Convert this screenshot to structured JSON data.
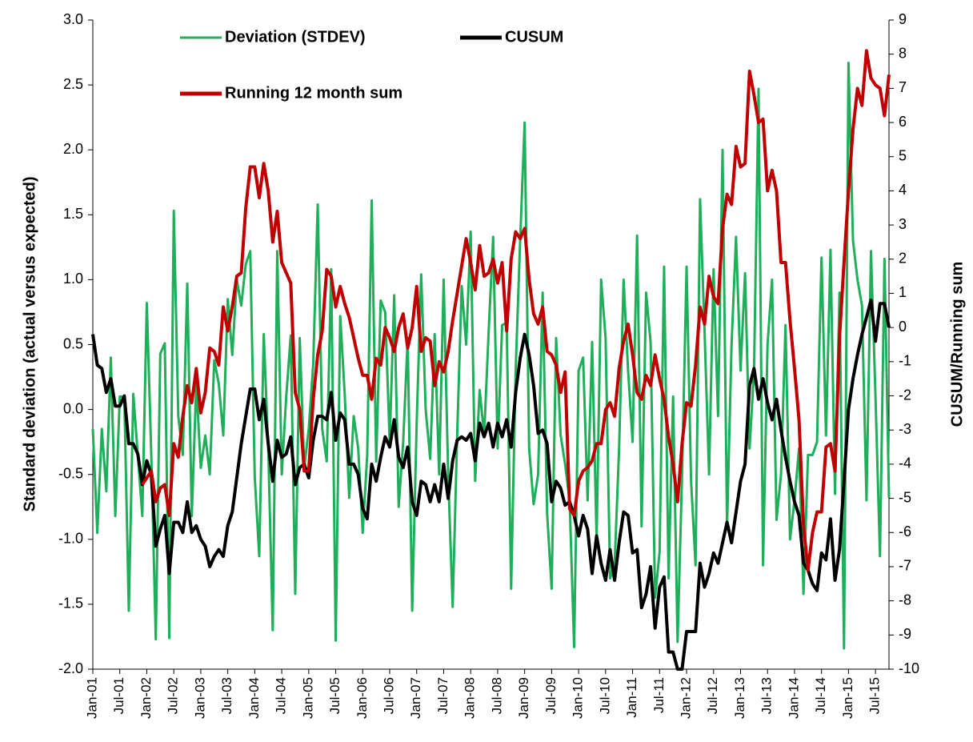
{
  "chart_data": {
    "type": "line",
    "y_label": "Standard deviation (actual versus expected)",
    "y2_label": "CUSUM/Running sum",
    "categories": [
      "Jan-01",
      null,
      null,
      null,
      null,
      null,
      "Jul-01",
      null,
      null,
      null,
      null,
      null,
      "Jan-02",
      null,
      null,
      null,
      null,
      null,
      "Jul-02",
      null,
      null,
      null,
      null,
      null,
      "Jan-03",
      null,
      null,
      null,
      null,
      null,
      "Jul-03",
      null,
      null,
      null,
      null,
      null,
      "Jan-04",
      null,
      null,
      null,
      null,
      null,
      "Jul-04",
      null,
      null,
      null,
      null,
      null,
      "Jan-05",
      null,
      null,
      null,
      null,
      null,
      "Jul-05",
      null,
      null,
      null,
      null,
      null,
      "Jan-06",
      null,
      null,
      null,
      null,
      null,
      "Jul-06",
      null,
      null,
      null,
      null,
      null,
      "Jan-07",
      null,
      null,
      null,
      null,
      null,
      "Jul-07",
      null,
      null,
      null,
      null,
      null,
      "Jan-08",
      null,
      null,
      null,
      null,
      null,
      "Jul-08",
      null,
      null,
      null,
      null,
      null,
      "Jan-09",
      null,
      null,
      null,
      null,
      null,
      "Jul-09",
      null,
      null,
      null,
      null,
      null,
      "Jan-10",
      null,
      null,
      null,
      null,
      null,
      "Jul-10",
      null,
      null,
      null,
      null,
      null,
      "Jan-11",
      null,
      null,
      null,
      null,
      null,
      "Jul-11",
      null,
      null,
      null,
      null,
      null,
      "Jan-12",
      null,
      null,
      null,
      null,
      null,
      "Jul-12",
      null,
      null,
      null,
      null,
      null,
      "Jan-13",
      null,
      null,
      null,
      null,
      null,
      "Jul-13",
      null,
      null,
      null,
      null,
      null,
      "Jan-14",
      null,
      null,
      null,
      null,
      null,
      "Jul-14",
      null,
      null,
      null,
      null,
      null,
      "Jan-15",
      null,
      null,
      null,
      null,
      null,
      "Jul-15",
      null,
      null,
      null
    ],
    "series": [
      {
        "name": "Deviation (STDEV)",
        "color": "#1fae5a",
        "axis": "y",
        "values": [
          -0.15,
          -0.95,
          -0.15,
          -0.63,
          0.4,
          -0.82,
          0.1,
          0.1,
          -1.55,
          0.12,
          -0.35,
          -0.82,
          0.82,
          -0.35,
          -1.77,
          0.43,
          0.51,
          -1.76,
          1.53,
          -0.05,
          -0.35,
          0.97,
          -0.82,
          0.2,
          -0.45,
          -0.2,
          -0.5,
          0.38,
          0.2,
          -0.2,
          0.85,
          0.42,
          1.0,
          0.8,
          1.12,
          1.22,
          -0.52,
          -1.13,
          0.58,
          -0.3,
          -1.7,
          1.22,
          -0.5,
          0.1,
          0.57,
          -1.42,
          0.55,
          -0.45,
          -0.15,
          0.35,
          1.58,
          -0.15,
          -0.4,
          1.08,
          -1.78,
          0.72,
          0.12,
          -0.68,
          -0.05,
          -0.3,
          -0.95,
          -0.35,
          1.61,
          -0.4,
          0.84,
          0.75,
          -0.25,
          0.88,
          -0.75,
          -0.25,
          0.55,
          -1.55,
          -0.1,
          1.04,
          0.0,
          -0.38,
          0.58,
          -0.5,
          1.0,
          -0.5,
          -1.52,
          -0.2,
          0.95,
          0.5,
          1.37,
          -0.55,
          0.15,
          -0.2,
          0.6,
          1.33,
          -0.3,
          0.65,
          0.67,
          -1.38,
          0.3,
          1.3,
          2.21,
          -0.3,
          -0.73,
          -0.5,
          0.9,
          -0.8,
          -1.38,
          0.55,
          -0.2,
          -0.42,
          -0.7,
          -1.83,
          0.3,
          0.4,
          -0.7,
          0.52,
          -1.0,
          1.0,
          0.55,
          -1.3,
          -1.2,
          -0.3,
          1.0,
          0.3,
          -0.25,
          1.34,
          -0.9,
          0.9,
          0.52,
          -1.45,
          -1.1,
          1.1,
          -1.3,
          0.1,
          -1.79,
          -0.5,
          1.1,
          -0.55,
          -1.2,
          1.62,
          0.6,
          -0.5,
          1.08,
          -0.05,
          2.0,
          -0.9,
          0.5,
          1.33,
          0.3,
          1.05,
          -0.3,
          0.3,
          2.47,
          -1.2,
          0.5,
          1.0,
          -0.85,
          -0.5,
          0.65,
          -1.0,
          -0.7,
          -0.3,
          -1.42,
          -0.35,
          -0.35,
          -0.25,
          1.17,
          -0.2,
          1.23,
          -0.65,
          0.9,
          -1.84,
          2.67,
          1.3,
          1.0,
          0.8,
          -0.7,
          1.22,
          0.1,
          -1.13,
          1.16,
          -0.68
        ]
      },
      {
        "name": "CUSUM",
        "color": "#000000",
        "axis": "y2",
        "values": [
          -0.2,
          -1.1,
          -1.2,
          -1.9,
          -1.5,
          -2.3,
          -2.3,
          -2.0,
          -3.4,
          -3.4,
          -3.7,
          -4.6,
          -3.9,
          -4.3,
          -6.4,
          -5.9,
          -5.5,
          -7.2,
          -5.7,
          -5.7,
          -6.0,
          -5.1,
          -6.0,
          -5.8,
          -6.2,
          -6.4,
          -7.0,
          -6.7,
          -6.5,
          -6.7,
          -5.8,
          -5.4,
          -4.4,
          -3.4,
          -2.6,
          -1.8,
          -1.8,
          -2.7,
          -2.1,
          -3.4,
          -4.5,
          -3.3,
          -3.8,
          -3.7,
          -3.2,
          -4.6,
          -4.1,
          -4.0,
          -4.4,
          -3.3,
          -2.6,
          -2.6,
          -2.7,
          -1.9,
          -3.3,
          -2.5,
          -2.7,
          -4.0,
          -4.0,
          -4.3,
          -5.3,
          -5.6,
          -4.0,
          -4.5,
          -3.8,
          -3.2,
          -3.5,
          -2.7,
          -3.8,
          -4.1,
          -3.5,
          -5.1,
          -5.5,
          -4.5,
          -4.6,
          -5.1,
          -4.6,
          -5.1,
          -4.0,
          -5.0,
          -3.9,
          -3.3,
          -3.2,
          -3.3,
          -3.1,
          -3.9,
          -2.8,
          -3.2,
          -2.8,
          -3.5,
          -2.8,
          -3.2,
          -2.7,
          -3.5,
          -1.9,
          -0.9,
          -0.2,
          -0.8,
          -1.7,
          -3.1,
          -3.0,
          -3.4,
          -5.1,
          -4.5,
          -4.7,
          -5.2,
          -5.1,
          -5.5,
          -6.1,
          -5.5,
          -5.9,
          -7.2,
          -6.1,
          -6.9,
          -7.4,
          -6.5,
          -7.4,
          -6.3,
          -5.4,
          -5.5,
          -6.6,
          -6.5,
          -8.2,
          -7.8,
          -7.0,
          -8.8,
          -7.6,
          -7.3,
          -9.5,
          -9.5,
          -10.0,
          -10.0,
          -8.9,
          -8.9,
          -8.9,
          -6.9,
          -7.6,
          -7.2,
          -6.6,
          -6.9,
          -6.3,
          -5.7,
          -6.3,
          -5.4,
          -4.5,
          -4.0,
          -1.7,
          -1.2,
          -2.1,
          -1.5,
          -2.2,
          -2.7,
          -2.1,
          -3.0,
          -3.8,
          -4.5,
          -5.1,
          -5.5,
          -6.9,
          -7.1,
          -7.5,
          -7.7,
          -6.6,
          -6.8,
          -5.6,
          -7.4,
          -6.5,
          -4.5,
          -2.4,
          -1.5,
          -0.8,
          -0.2,
          0.3,
          0.8,
          -0.4,
          0.7,
          0.7,
          0.0
        ]
      },
      {
        "name": "Running 12 month sum",
        "color": "#c00000",
        "axis": "y2",
        "values": [
          null,
          null,
          null,
          null,
          null,
          null,
          null,
          null,
          null,
          null,
          null,
          -4.6,
          -4.4,
          -4.2,
          -5.1,
          -4.7,
          -4.6,
          -5.5,
          -3.4,
          -3.8,
          -2.6,
          -1.7,
          -2.2,
          -1.2,
          -2.5,
          -1.9,
          -0.6,
          -0.7,
          -1.1,
          0.6,
          -0.1,
          0.6,
          1.5,
          1.6,
          3.5,
          4.7,
          4.7,
          3.8,
          4.8,
          4.0,
          2.5,
          3.4,
          1.9,
          1.6,
          1.3,
          -1.9,
          -2.4,
          -4.2,
          -4.2,
          -2.1,
          -0.8,
          -0.1,
          1.7,
          1.5,
          0.6,
          1.2,
          0.7,
          0.3,
          -0.3,
          -0.9,
          -1.4,
          -1.4,
          -2.1,
          -0.9,
          -1.1,
          0.0,
          -0.3,
          -0.7,
          0.0,
          0.4,
          -0.6,
          0.0,
          1.2,
          -0.7,
          -0.3,
          -0.4,
          -1.7,
          -1.0,
          -1.3,
          -0.7,
          0.2,
          1.0,
          1.8,
          2.6,
          1.9,
          1.1,
          2.4,
          1.5,
          1.6,
          2.0,
          1.3,
          1.9,
          -0.1,
          2.0,
          2.8,
          2.6,
          2.9,
          1.4,
          0.4,
          0.1,
          0.6,
          -0.7,
          -0.8,
          -1.1,
          -1.9,
          -1.3,
          -5.3,
          -5.5,
          -4.5,
          -4.2,
          -4.1,
          -3.9,
          -3.4,
          -3.4,
          -2.4,
          -2.2,
          -2.6,
          -1.2,
          -0.4,
          0.1,
          -0.8,
          -1.9,
          -2.1,
          -1.4,
          -1.7,
          -0.8,
          -1.5,
          -2.1,
          -3.2,
          -4.0,
          -5.1,
          -3.4,
          -2.2,
          -2.3,
          -1.1,
          0.6,
          0.1,
          1.5,
          0.9,
          0.7,
          2.9,
          3.9,
          3.6,
          5.3,
          4.7,
          4.8,
          7.5,
          6.8,
          6.0,
          6.1,
          4.0,
          4.6,
          4.0,
          1.9,
          1.9,
          0.2,
          -1.2,
          -2.7,
          -5.8,
          -7.1,
          -6.0,
          -5.4,
          -5.4,
          -3.5,
          -3.4,
          -4.2,
          -0.3,
          1.9,
          4.0,
          5.8,
          7.0,
          6.5,
          8.1,
          7.3,
          7.1,
          7.0,
          6.2,
          7.4
        ]
      }
    ],
    "ylim": [
      -2,
      3
    ],
    "yticks": [
      {
        "value": -2,
        "label": "-2.0"
      },
      -1.5,
      {
        "value": -1,
        "label": "-1.0"
      },
      -0.5,
      {
        "value": 0,
        "label": "0.0"
      },
      0.5,
      {
        "value": 1,
        "label": "1.0"
      },
      1.5,
      {
        "value": 2,
        "label": "2.0"
      },
      2.5,
      {
        "value": 3,
        "label": "3.0"
      }
    ],
    "y2lim": [
      -10,
      9
    ],
    "y2ticks": [
      -10,
      -9,
      -8,
      -7,
      -6,
      -5,
      -4,
      -3,
      -2,
      -1,
      0,
      1,
      2,
      3,
      4,
      5,
      6,
      7,
      8,
      9
    ],
    "grid": false
  }
}
